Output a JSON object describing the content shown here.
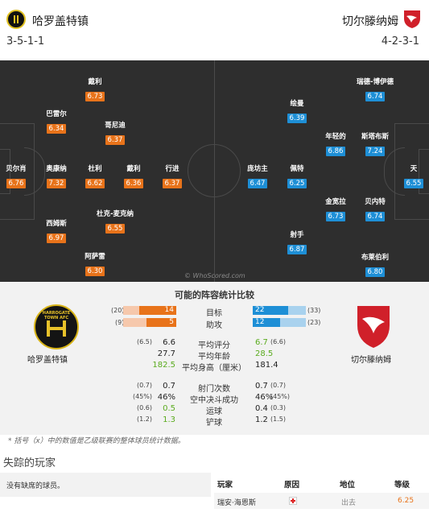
{
  "home": {
    "name": "哈罗盖特镇",
    "formation": "3-5-1-1"
  },
  "away": {
    "name": "切尔滕纳姆",
    "formation": "4-2-3-1"
  },
  "pitch": {
    "watermark": "© WhoScored.com",
    "home_players": [
      {
        "name": "贝尔肖",
        "rating": "6.76"
      },
      {
        "name": "戴利",
        "rating": "6.73"
      },
      {
        "name": "巴雷尔",
        "rating": "6.34"
      },
      {
        "name": "奥康纳",
        "rating": "7.32"
      },
      {
        "name": "西姆斯",
        "rating": "6.97"
      },
      {
        "name": "阿萨雷",
        "rating": "6.30"
      },
      {
        "name": "哥尼迪",
        "rating": "6.37"
      },
      {
        "name": "杜利",
        "rating": "6.62"
      },
      {
        "name": "戴利",
        "rating": "6.36"
      },
      {
        "name": "杜克-麦克纳",
        "rating": "6.55"
      },
      {
        "name": "行进",
        "rating": "6.37"
      }
    ],
    "away_players": [
      {
        "name": "天",
        "rating": "6.55"
      },
      {
        "name": "瑞德-博伊德",
        "rating": "6.74"
      },
      {
        "name": "斯塔布斯",
        "rating": "7.24"
      },
      {
        "name": "贝内特",
        "rating": "6.74"
      },
      {
        "name": "布莱伯利",
        "rating": "6.80"
      },
      {
        "name": "年轻的",
        "rating": "6.86"
      },
      {
        "name": "金宽拉",
        "rating": "6.73"
      },
      {
        "name": "绘曼",
        "rating": "6.39"
      },
      {
        "name": "佩特",
        "rating": "6.25"
      },
      {
        "name": "射手",
        "rating": "6.87"
      },
      {
        "name": "庞坊主",
        "rating": "6.47"
      }
    ]
  },
  "comparison": {
    "title": "可能的阵容统计比较",
    "home_badge_text": "HARROGATE TOWN AFC",
    "bars": [
      {
        "label": "目标",
        "home_total": "(20)",
        "home": "14",
        "away": "22",
        "away_total": "(33)",
        "home_frac": 0.7,
        "away_frac": 0.667
      },
      {
        "label": "助攻",
        "home_total": "(9)",
        "home": "5",
        "away": "12",
        "away_total": "(23)",
        "home_frac": 0.556,
        "away_frac": 0.522
      }
    ],
    "stats1": [
      {
        "label": "平均评分",
        "home_small": "(6.5)",
        "home": "6.6",
        "away": "6.7",
        "away_small": "(6.6)",
        "home_green": false,
        "away_green": true
      },
      {
        "label": "平均年龄",
        "home_small": "",
        "home": "27.7",
        "away": "28.5",
        "away_small": "",
        "home_green": false,
        "away_green": true
      },
      {
        "label": "平均身高（厘米）",
        "home_small": "",
        "home": "182.5",
        "away": "181.4",
        "away_small": "",
        "home_green": true,
        "away_green": false
      }
    ],
    "stats2": [
      {
        "label": "射门次数",
        "home_small": "(0.7)",
        "home": "0.7",
        "away": "0.7",
        "away_small": "(0.7)",
        "home_green": false,
        "away_green": false
      },
      {
        "label": "空中决斗成功",
        "home_small": "(45%)",
        "home": "46%",
        "away": "46%",
        "away_small": "(45%)",
        "home_green": false,
        "away_green": false
      },
      {
        "label": "运球",
        "home_small": "(0.6)",
        "home": "0.5",
        "away": "0.4",
        "away_small": "(0.3)",
        "home_green": true,
        "away_green": false
      },
      {
        "label": "铲球",
        "home_small": "(1.2)",
        "home": "1.3",
        "away": "1.2",
        "away_small": "(1.5)",
        "home_green": true,
        "away_green": false
      }
    ],
    "note": "* 括号（x）中的数值是乙级联赛的整体球员统计数据。"
  },
  "missing": {
    "title": "失踪的玩家",
    "home_empty": "没有缺席的球员。",
    "headers": {
      "player": "玩家",
      "reason": "原因",
      "status": "地位",
      "rating": "等级"
    },
    "rows": [
      {
        "player": "瑞安·海恩斯",
        "status": "出去",
        "rating": "6.25"
      }
    ]
  },
  "colors": {
    "home_accent": "#e8731a",
    "away_accent": "#1e8fd6",
    "pitch": "#2e2e2e",
    "green": "#5aab1e"
  }
}
